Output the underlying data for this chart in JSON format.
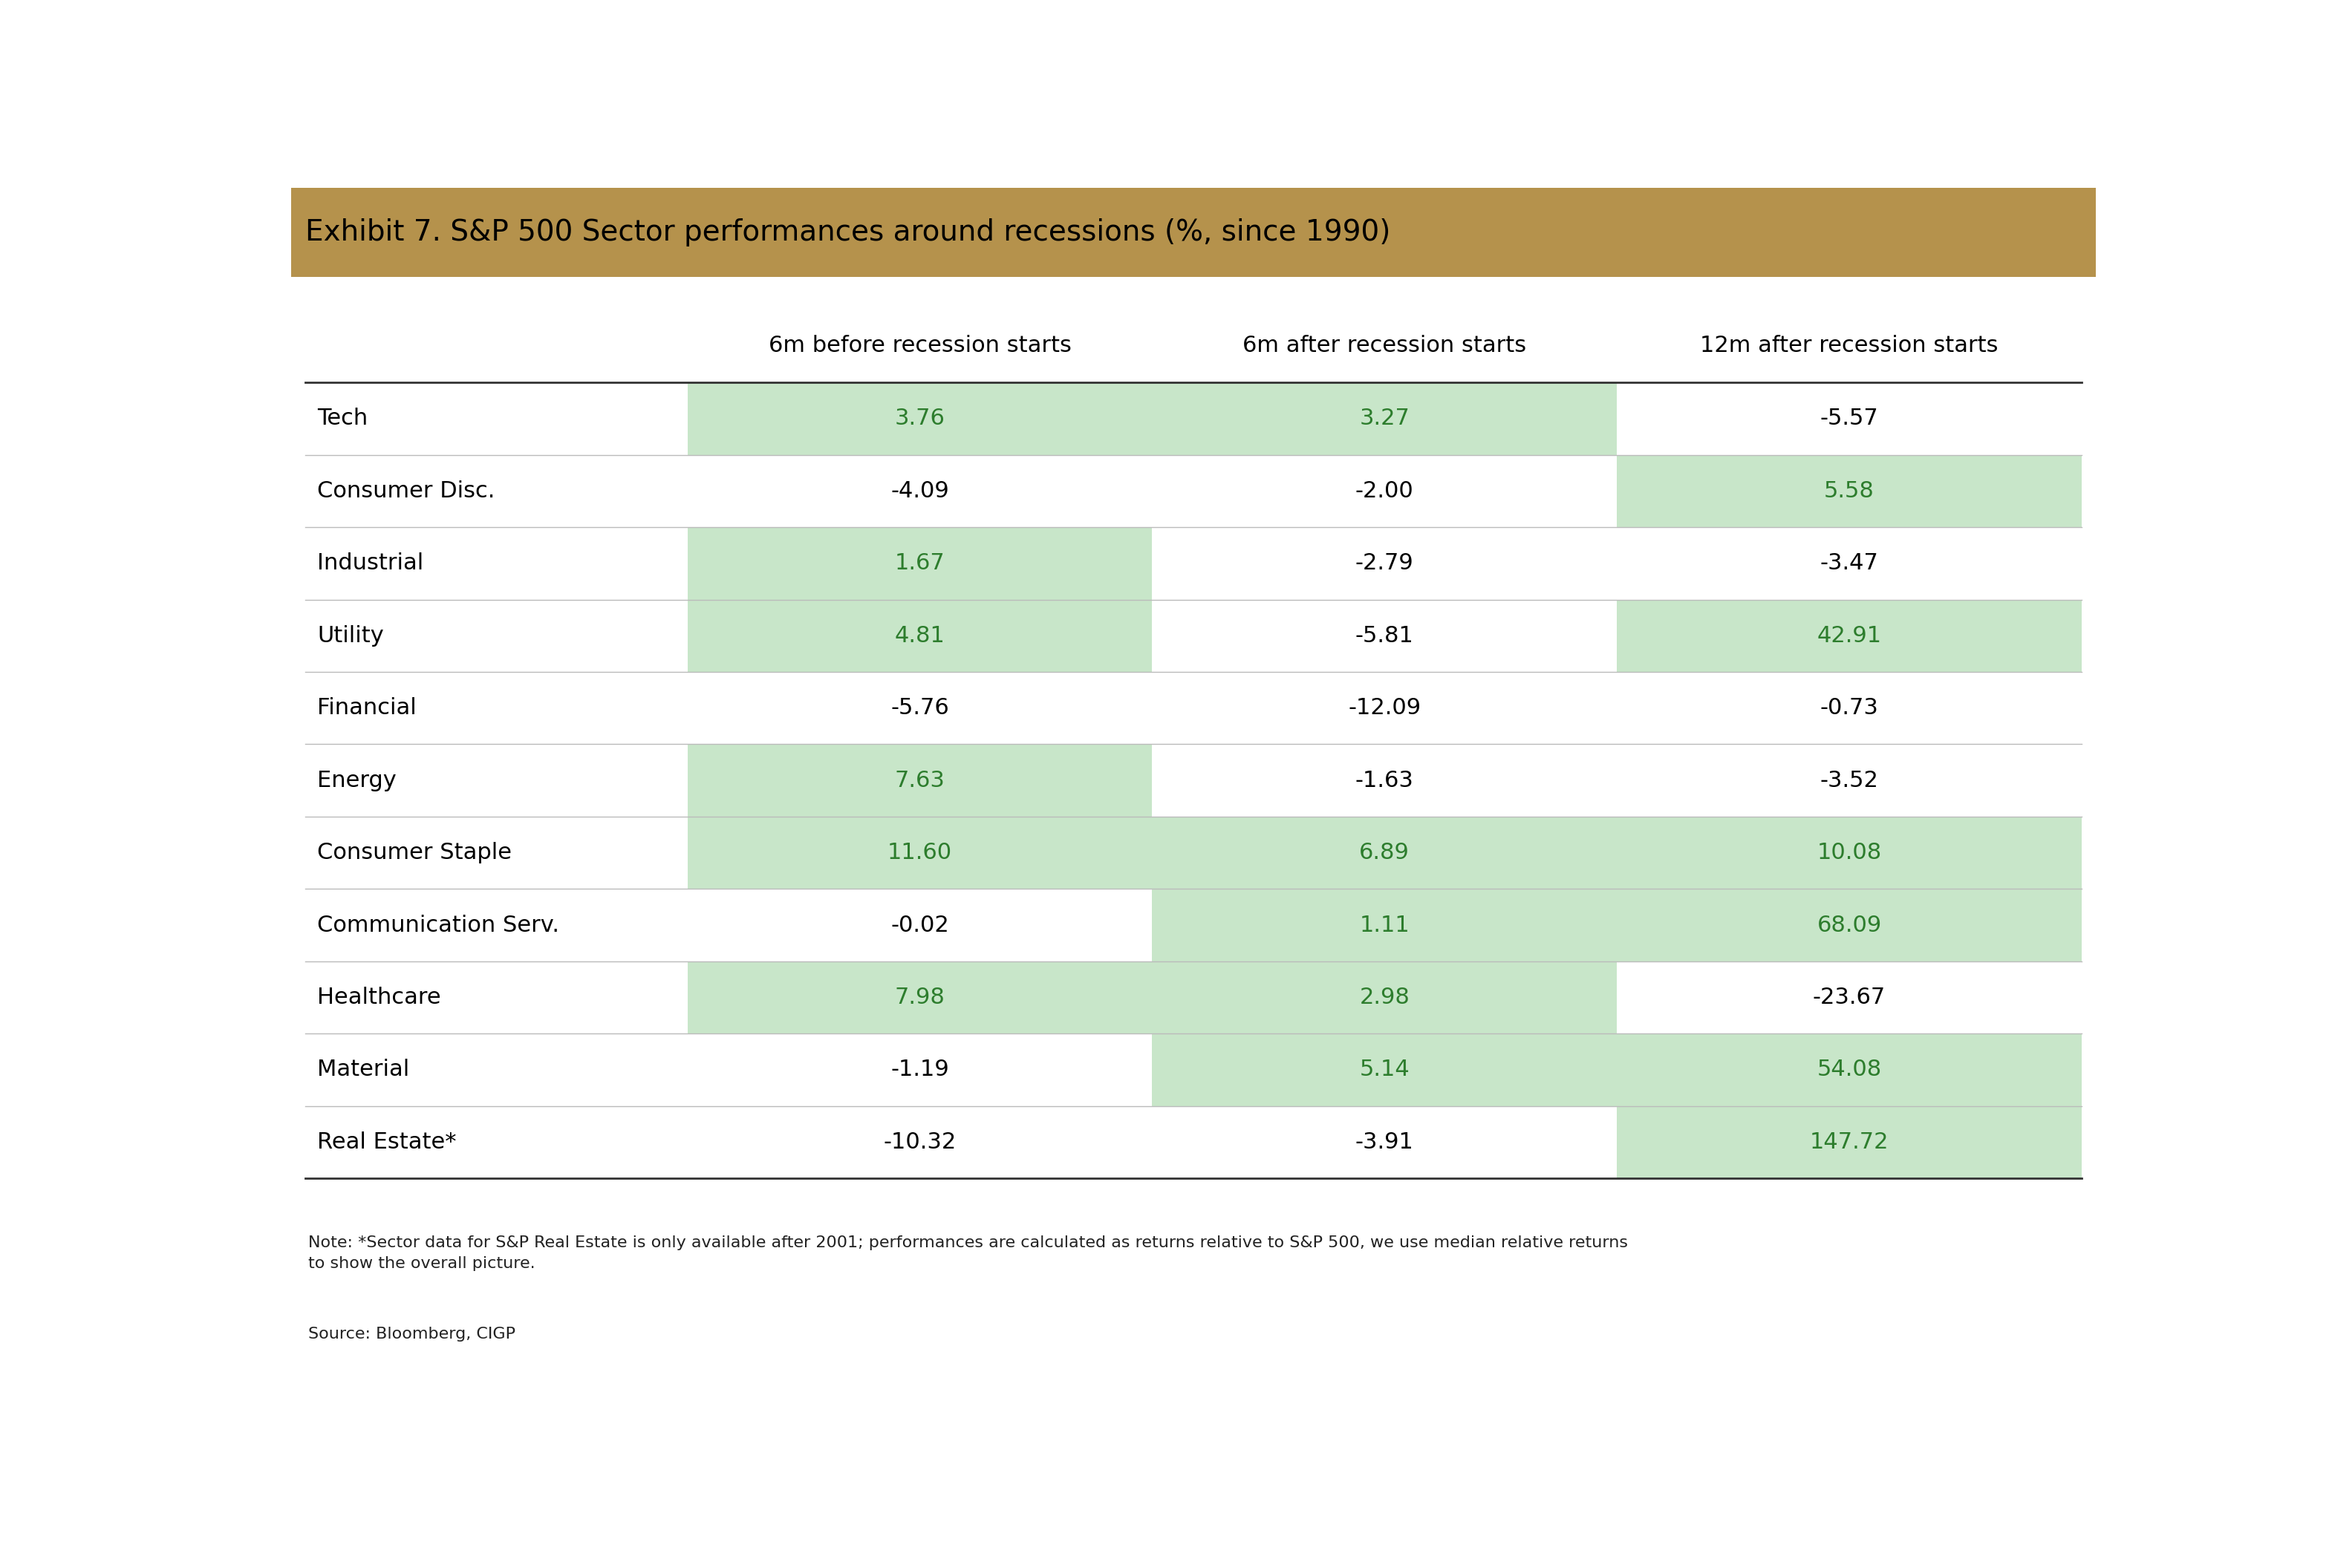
{
  "title": "Exhibit 7. S&P 500 Sector performances around recessions (%, since 1990)",
  "title_bg_color": "#b5924c",
  "title_text_color": "#000000",
  "header_cols": [
    "6m before recession starts",
    "6m after recession starts",
    "12m after recession starts"
  ],
  "sectors": [
    "Tech",
    "Consumer Disc.",
    "Industrial",
    "Utility",
    "Financial",
    "Energy",
    "Consumer Staple",
    "Communication Serv.",
    "Healthcare",
    "Material",
    "Real Estate*"
  ],
  "col1_values": [
    3.76,
    -4.09,
    1.67,
    4.81,
    -5.76,
    7.63,
    11.6,
    -0.02,
    7.98,
    -1.19,
    -10.32
  ],
  "col2_values": [
    3.27,
    -2.0,
    -2.79,
    -5.81,
    -12.09,
    -1.63,
    6.89,
    1.11,
    2.98,
    5.14,
    -3.91
  ],
  "col3_values": [
    -5.57,
    5.58,
    -3.47,
    42.91,
    -0.73,
    -3.52,
    10.08,
    68.09,
    -23.67,
    54.08,
    147.72
  ],
  "col1_highlighted": [
    true,
    false,
    true,
    true,
    false,
    true,
    true,
    false,
    true,
    false,
    false
  ],
  "col2_highlighted": [
    true,
    false,
    false,
    false,
    false,
    false,
    true,
    true,
    true,
    true,
    false
  ],
  "col3_highlighted": [
    false,
    true,
    false,
    true,
    false,
    false,
    true,
    true,
    false,
    true,
    true
  ],
  "highlight_bg": "#c8e6c9",
  "highlight_text_color": "#2d7d2d",
  "normal_text_color": "#000000",
  "note_text": "Note: *Sector data for S&P Real Estate is only available after 2001; performances are calculated as returns relative to S&P 500, we use median relative returns\nto show the overall picture.",
  "source_text": "Source: Bloomberg, CIGP",
  "background_color": "#ffffff",
  "row_line_color": "#bbbbbb",
  "header_text_color": "#000000",
  "title_fontsize": 28,
  "header_fontsize": 22,
  "data_fontsize": 22,
  "sector_fontsize": 22,
  "note_fontsize": 16,
  "source_fontsize": 16
}
